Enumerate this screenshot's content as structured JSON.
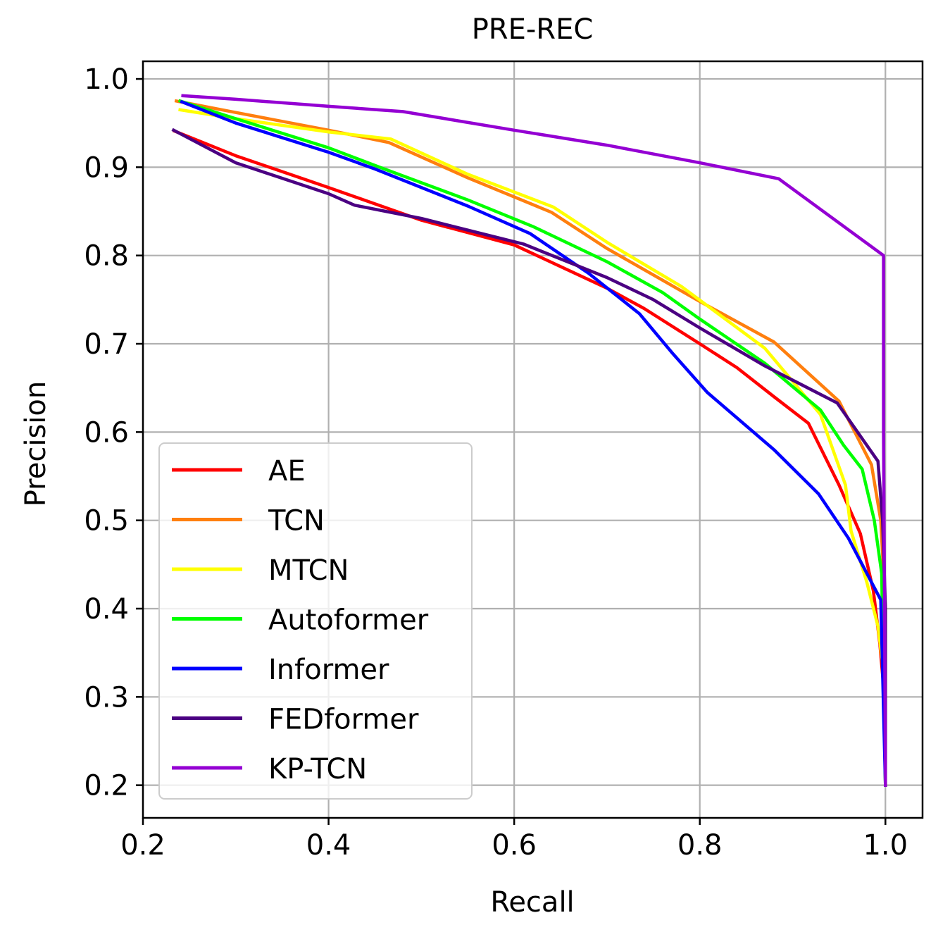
{
  "chart_data": {
    "type": "line",
    "title": "PRE-REC",
    "xlabel": "Recall",
    "ylabel": "Precision",
    "xlim": [
      0.2,
      1.04
    ],
    "ylim": [
      0.163,
      1.02
    ],
    "xticks": [
      {
        "value": 0.2,
        "label": "0.2"
      },
      {
        "value": 0.4,
        "label": "0.4"
      },
      {
        "value": 0.6,
        "label": "0.6"
      },
      {
        "value": 0.8,
        "label": "0.8"
      },
      {
        "value": 1.0,
        "label": "1.0"
      }
    ],
    "yticks": [
      {
        "value": 0.2,
        "label": "0.2"
      },
      {
        "value": 0.3,
        "label": "0.3"
      },
      {
        "value": 0.4,
        "label": "0.4"
      },
      {
        "value": 0.5,
        "label": "0.5"
      },
      {
        "value": 0.6,
        "label": "0.6"
      },
      {
        "value": 0.7,
        "label": "0.7"
      },
      {
        "value": 0.8,
        "label": "0.8"
      },
      {
        "value": 0.9,
        "label": "0.9"
      },
      {
        "value": 1.0,
        "label": "1.0"
      }
    ],
    "grid": true,
    "legend_position": "lower-left",
    "series": [
      {
        "name": "AE",
        "color": "#ff0000",
        "points": [
          [
            0.234,
            0.941
          ],
          [
            0.3,
            0.913
          ],
          [
            0.4,
            0.877
          ],
          [
            0.5,
            0.84
          ],
          [
            0.6,
            0.812
          ],
          [
            0.7,
            0.763
          ],
          [
            0.74,
            0.74
          ],
          [
            0.8,
            0.7
          ],
          [
            0.84,
            0.673
          ],
          [
            0.88,
            0.64
          ],
          [
            0.917,
            0.61
          ],
          [
            0.95,
            0.54
          ],
          [
            0.973,
            0.485
          ],
          [
            0.987,
            0.42
          ],
          [
            0.994,
            0.36
          ],
          [
            0.999,
            0.3
          ],
          [
            1.0,
            0.2
          ]
        ]
      },
      {
        "name": "TCN",
        "color": "#ff7f0e",
        "points": [
          [
            0.236,
            0.975
          ],
          [
            0.3,
            0.962
          ],
          [
            0.4,
            0.942
          ],
          [
            0.465,
            0.928
          ],
          [
            0.55,
            0.888
          ],
          [
            0.64,
            0.849
          ],
          [
            0.7,
            0.808
          ],
          [
            0.8,
            0.748
          ],
          [
            0.88,
            0.702
          ],
          [
            0.95,
            0.635
          ],
          [
            0.985,
            0.563
          ],
          [
            0.995,
            0.5
          ],
          [
            1.0,
            0.4
          ],
          [
            1.0,
            0.2
          ]
        ]
      },
      {
        "name": "MTCN",
        "color": "#ffff00",
        "points": [
          [
            0.24,
            0.965
          ],
          [
            0.3,
            0.955
          ],
          [
            0.4,
            0.94
          ],
          [
            0.467,
            0.932
          ],
          [
            0.55,
            0.892
          ],
          [
            0.642,
            0.855
          ],
          [
            0.7,
            0.815
          ],
          [
            0.78,
            0.765
          ],
          [
            0.87,
            0.695
          ],
          [
            0.93,
            0.62
          ],
          [
            0.957,
            0.54
          ],
          [
            0.963,
            0.488
          ],
          [
            0.98,
            0.43
          ],
          [
            0.992,
            0.38
          ],
          [
            0.998,
            0.33
          ],
          [
            1.0,
            0.2
          ]
        ]
      },
      {
        "name": "Autoformer",
        "color": "#00ff00",
        "points": [
          [
            0.24,
            0.975
          ],
          [
            0.3,
            0.955
          ],
          [
            0.4,
            0.922
          ],
          [
            0.455,
            0.9
          ],
          [
            0.55,
            0.863
          ],
          [
            0.62,
            0.833
          ],
          [
            0.7,
            0.793
          ],
          [
            0.76,
            0.758
          ],
          [
            0.8,
            0.728
          ],
          [
            0.87,
            0.678
          ],
          [
            0.93,
            0.625
          ],
          [
            0.955,
            0.585
          ],
          [
            0.975,
            0.558
          ],
          [
            0.988,
            0.5
          ],
          [
            0.996,
            0.44
          ],
          [
            1.0,
            0.2
          ]
        ]
      },
      {
        "name": "Informer",
        "color": "#0000ff",
        "points": [
          [
            0.242,
            0.974
          ],
          [
            0.3,
            0.95
          ],
          [
            0.4,
            0.917
          ],
          [
            0.45,
            0.898
          ],
          [
            0.55,
            0.856
          ],
          [
            0.617,
            0.825
          ],
          [
            0.68,
            0.78
          ],
          [
            0.735,
            0.734
          ],
          [
            0.77,
            0.69
          ],
          [
            0.808,
            0.645
          ],
          [
            0.88,
            0.58
          ],
          [
            0.928,
            0.53
          ],
          [
            0.96,
            0.48
          ],
          [
            0.98,
            0.44
          ],
          [
            0.995,
            0.41
          ],
          [
            1.0,
            0.2
          ]
        ]
      },
      {
        "name": "FEDformer",
        "color": "#4b0082",
        "points": [
          [
            0.233,
            0.942
          ],
          [
            0.3,
            0.905
          ],
          [
            0.4,
            0.87
          ],
          [
            0.428,
            0.857
          ],
          [
            0.5,
            0.842
          ],
          [
            0.61,
            0.813
          ],
          [
            0.7,
            0.775
          ],
          [
            0.75,
            0.75
          ],
          [
            0.8,
            0.718
          ],
          [
            0.87,
            0.675
          ],
          [
            0.948,
            0.633
          ],
          [
            0.992,
            0.567
          ],
          [
            0.997,
            0.5
          ],
          [
            1.0,
            0.4
          ],
          [
            1.0,
            0.2
          ]
        ]
      },
      {
        "name": "KP-TCN",
        "color": "#9400d3",
        "points": [
          [
            0.243,
            0.981
          ],
          [
            0.3,
            0.977
          ],
          [
            0.4,
            0.969
          ],
          [
            0.48,
            0.963
          ],
          [
            0.6,
            0.942
          ],
          [
            0.7,
            0.925
          ],
          [
            0.8,
            0.905
          ],
          [
            0.885,
            0.887
          ],
          [
            0.998,
            0.8
          ],
          [
            0.998,
            0.6
          ],
          [
            0.999,
            0.4
          ],
          [
            1.0,
            0.2
          ]
        ]
      }
    ]
  }
}
